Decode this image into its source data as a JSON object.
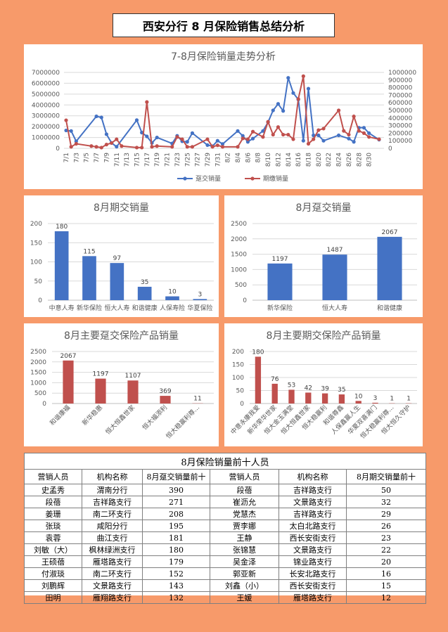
{
  "page_title": "西安分行 8 月保险销售总结分析",
  "colors": {
    "blue": "#4472C4",
    "red": "#C0504D",
    "grid": "#D9D9D9"
  },
  "chart_data": [
    {
      "id": "trend",
      "type": "line",
      "title": "7-8月保险销量走势分析",
      "x_ticks": [
        "7/1",
        "7/3",
        "7/5",
        "7/7",
        "7/9",
        "7/11",
        "7/13",
        "7/15",
        "7/17",
        "7/19",
        "7/21",
        "7/23",
        "7/25",
        "7/27",
        "7/29",
        "7/31",
        "8/2",
        "8/4",
        "8/6",
        "8/8",
        "8/10",
        "8/12",
        "8/14",
        "8/16",
        "8/18",
        "8/20",
        "8/22",
        "8/24",
        "8/26",
        "8/28",
        "8/30"
      ],
      "y_left_ticks": [
        "0",
        "1000000",
        "2000000",
        "3000000",
        "4000000",
        "5000000",
        "6000000",
        "7000000"
      ],
      "y_right_ticks": [
        "0",
        "100000",
        "200000",
        "300000",
        "400000",
        "500000",
        "600000",
        "700000",
        "800000",
        "900000",
        "1000000"
      ],
      "ylim_left": [
        0,
        7000000
      ],
      "ylim_right": [
        0,
        1000000
      ],
      "legend_position": "bottom",
      "series": [
        {
          "name": "趸交销量",
          "axis": "left",
          "color": "#4472C4",
          "x": [
            0,
            1,
            2,
            6,
            7,
            8,
            9,
            10,
            14,
            15,
            16,
            17,
            18,
            21,
            22,
            23,
            24,
            25,
            28,
            29,
            30,
            31,
            34,
            35,
            36,
            37,
            39,
            40,
            41,
            42,
            43,
            44,
            45,
            46,
            47,
            48,
            49,
            50,
            51,
            54,
            56,
            57,
            58,
            59,
            60,
            62
          ],
          "values": [
            1650000,
            1600000,
            650000,
            2950000,
            2850000,
            1300000,
            500000,
            150000,
            2600000,
            1450000,
            1100000,
            500000,
            1000000,
            450000,
            1150000,
            650000,
            600000,
            1400000,
            300000,
            200000,
            700000,
            400000,
            1600000,
            1150000,
            600000,
            900000,
            1600000,
            2400000,
            3500000,
            4100000,
            3450000,
            6500000,
            5100000,
            4500000,
            700000,
            5500000,
            1200000,
            1200000,
            700000,
            1200000,
            900000,
            600000,
            1900000,
            1900000,
            1400000,
            800000
          ]
        },
        {
          "name": "期缴销量",
          "axis": "right",
          "color": "#C0504D",
          "x": [
            0,
            1,
            2,
            5,
            6,
            7,
            8,
            9,
            10,
            11,
            14,
            15,
            16,
            17,
            18,
            21,
            22,
            23,
            24,
            25,
            28,
            29,
            30,
            31,
            34,
            35,
            36,
            37,
            39,
            40,
            41,
            42,
            43,
            44,
            45,
            46,
            47,
            48,
            49,
            50,
            51,
            54,
            55,
            56,
            57,
            58,
            59,
            60,
            62
          ],
          "values": [
            370000,
            20000,
            60000,
            30000,
            20000,
            10000,
            50000,
            70000,
            120000,
            30000,
            10000,
            10000,
            610000,
            20000,
            30000,
            20000,
            150000,
            120000,
            20000,
            20000,
            120000,
            20000,
            40000,
            20000,
            20000,
            130000,
            120000,
            220000,
            150000,
            350000,
            180000,
            280000,
            180000,
            180000,
            120000,
            650000,
            950000,
            60000,
            120000,
            240000,
            260000,
            500000,
            230000,
            180000,
            420000,
            230000,
            200000,
            150000,
            120000
          ]
        }
      ]
    },
    {
      "id": "aug_period",
      "type": "bar",
      "title": "8月期交销量",
      "categories": [
        "中意人寿",
        "新华保险",
        "恒大人寿",
        "和谐健康",
        "人保寿险",
        "华夏保险"
      ],
      "values": [
        180,
        115,
        97,
        35,
        10,
        3
      ],
      "y_ticks": [
        "0",
        "50",
        "100",
        "150",
        "200"
      ],
      "ylim": [
        0,
        200
      ],
      "color": "#4472C4"
    },
    {
      "id": "aug_lump",
      "type": "bar",
      "title": "8月趸交销量",
      "categories": [
        "新华保险",
        "恒大人寿",
        "和谐健康"
      ],
      "values": [
        1197,
        1487,
        2067
      ],
      "y_ticks": [
        "0",
        "500",
        "1000",
        "1500",
        "2000",
        "2500"
      ],
      "ylim": [
        0,
        2500
      ],
      "color": "#4472C4"
    },
    {
      "id": "lump_products",
      "type": "bar",
      "title": "8月主要趸交保险产品销量",
      "categories": [
        "和谐康福",
        "新华稳惠",
        "恒大恒鑫世家",
        "恒大福添利",
        "恒大稳赢利尊..."
      ],
      "values": [
        2067,
        1197,
        1107,
        369,
        11
      ],
      "y_ticks": [
        "0",
        "500",
        "1000",
        "1500",
        "2000",
        "2500"
      ],
      "ylim": [
        0,
        2500
      ],
      "color": "#C0504D"
    },
    {
      "id": "period_products",
      "type": "bar",
      "title": "8月主要期交保险产品销量",
      "categories": [
        "中意永康我爱",
        "新华荣华世家",
        "恒大金玉满堂",
        "恒大恒鑫世家",
        "恒大稳赢利",
        "和谐尊鑫",
        "人保鑫赢人生",
        "华夏双喜满门",
        "恒大稳赢利尊...",
        "恒大恒久守护"
      ],
      "values": [
        180,
        76,
        53,
        42,
        39,
        35,
        10,
        3,
        1,
        1
      ],
      "y_ticks": [
        "0",
        "50",
        "100",
        "150",
        "200"
      ],
      "ylim": [
        0,
        200
      ],
      "color": "#C0504D"
    }
  ],
  "table": {
    "title": "8月保险销量前十人员",
    "headers": [
      "营销人员",
      "机构名称",
      "8月趸交销量前十",
      "营销人员",
      "机构名称",
      "8月期交销量前十"
    ],
    "rows": [
      [
        "史孟秀",
        "渭南分行",
        "390",
        "段蓓",
        "吉祥路支行",
        "50"
      ],
      [
        "段蓓",
        "吉祥路支行",
        "271",
        "崔沥允",
        "文景路支行",
        "32"
      ],
      [
        "姜珊",
        "南二环支行",
        "208",
        "党慧杰",
        "吉祥路支行",
        "29"
      ],
      [
        "张琰",
        "咸阳分行",
        "195",
        "贾李娜",
        "太白北路支行",
        "26"
      ],
      [
        "袁蓉",
        "曲江支行",
        "181",
        "王静",
        "西长安街支行",
        "23"
      ],
      [
        "刘敏（大）",
        "枫林绿洲支行",
        "180",
        "张锦慧",
        "文景路支行",
        "22"
      ],
      [
        "王硕蓓",
        "雁塔路支行",
        "179",
        "吴金泽",
        "锦业路支行",
        "20"
      ],
      [
        "付淑琰",
        "南二环支行",
        "152",
        "郭亚新",
        "长安北路支行",
        "16"
      ],
      [
        "刘鹏辉",
        "文景路支行",
        "143",
        "刘鑫（小）",
        "西长安街支行",
        "15"
      ],
      [
        "田明",
        "雁翔路支行",
        "132",
        "王媛",
        "雁塔路支行",
        "12"
      ]
    ]
  }
}
